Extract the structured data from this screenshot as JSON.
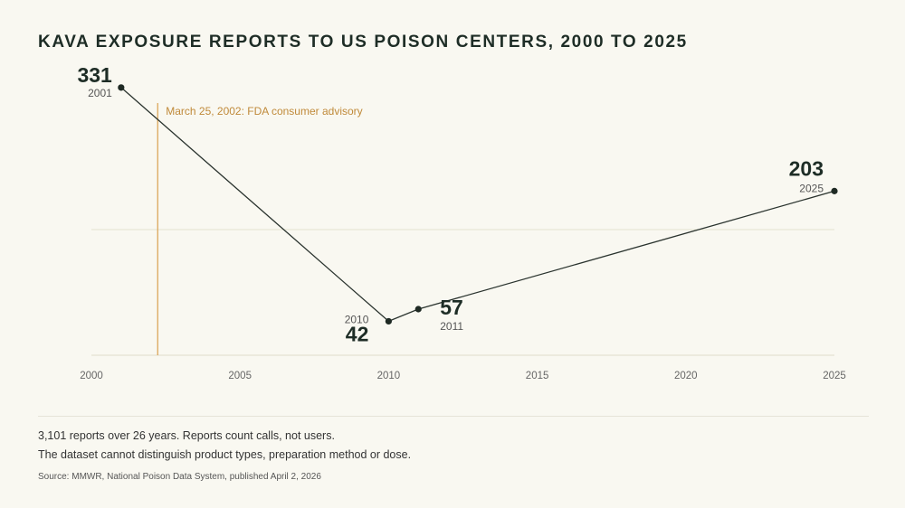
{
  "title": "KAVA EXPOSURE REPORTS TO US POISON CENTERS, 2000 TO 2025",
  "notes": [
    "3,101 reports over 26 years. Reports count calls, not users.",
    "The dataset cannot distinguish product types, preparation method or dose."
  ],
  "source": "Source: MMWR, National Poison Data System, published April 2, 2026",
  "colors": {
    "line": "#2a332e",
    "annotation": "#d9a04f",
    "grid": "#e4e2cf",
    "axis": "#dedccc"
  },
  "chart_data": {
    "type": "line",
    "xlim": [
      2000,
      2025
    ],
    "ylim": [
      0,
      380
    ],
    "x_ticks": [
      2000,
      2005,
      2010,
      2015,
      2020,
      2025
    ],
    "gridlines_y": [
      150
    ],
    "series": [
      {
        "x": [
          2001,
          2010,
          2011,
          2025
        ],
        "y": [
          331,
          42,
          57,
          203
        ]
      }
    ],
    "data_labels": [
      {
        "x": 2001,
        "value": "331",
        "year": "2001"
      },
      {
        "x": 2010,
        "value": "42",
        "year": "2010"
      },
      {
        "x": 2011,
        "value": "57",
        "year": "2011"
      },
      {
        "x": 2025,
        "value": "203",
        "year": "2025"
      }
    ],
    "annotation": {
      "x": 2002.23,
      "label": "March 25, 2002: FDA consumer advisory"
    }
  }
}
